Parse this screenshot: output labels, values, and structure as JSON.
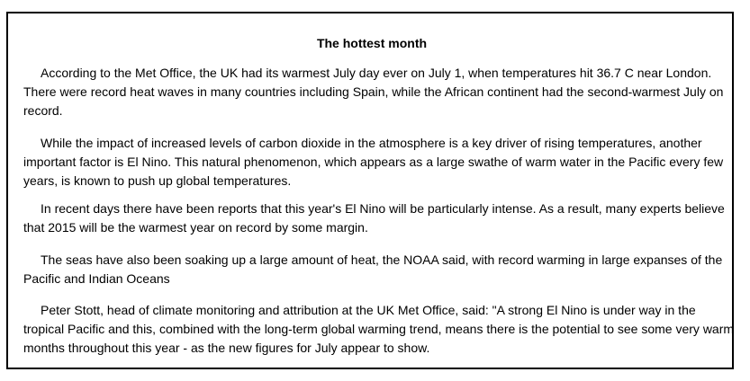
{
  "article": {
    "title": "The hottest month",
    "paragraphs": [
      "According to the Met Office, the UK had its warmest July day ever on July 1, when temperatures hit 36.7 C near London. There were record heat waves in many countries including Spain, while the African continent had the second-warmest July on record.",
      "While the impact of increased levels of carbon dioxide in the atmosphere is a key driver of rising temperatures, another important factor is El Nino. This natural phenomenon, which appears as a large swathe of warm water in the Pacific every few years, is known to push up global temperatures.",
      "In recent days there have been reports that this year's El Nino will be particularly intense. As a result, many experts believe that 2015 will be the warmest year on record by some margin.",
      "The seas have also been soaking up a large amount of heat, the NOAA said, with record warming in large expanses of the Pacific and Indian Oceans",
      "Peter Stott, head of climate monitoring and attribution at the UK Met Office, said: \"A strong El Nino is under way in the tropical Pacific and this, combined with the long-term global warming trend, means there is the potential to see some very warm months throughout this year - as the new figures for July appear to show."
    ]
  }
}
